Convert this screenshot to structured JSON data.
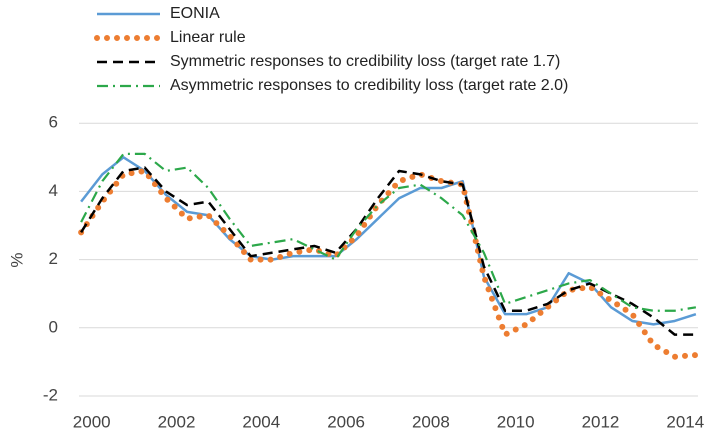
{
  "chart_data": {
    "type": "line",
    "y_label": "%",
    "x": [
      1999.75,
      2000.25,
      2000.75,
      2001.25,
      2001.75,
      2002.25,
      2002.75,
      2003.25,
      2003.75,
      2004.25,
      2004.75,
      2005.25,
      2005.75,
      2006.25,
      2006.75,
      2007.25,
      2007.75,
      2008.25,
      2008.75,
      2009.25,
      2009.75,
      2010.25,
      2010.75,
      2011.25,
      2011.75,
      2012.25,
      2012.75,
      2013.25,
      2013.75,
      2014.25
    ],
    "series": [
      {
        "name": "EONIA",
        "color": "#5b9bd5",
        "style": "solid",
        "values": [
          3.7,
          4.5,
          5.0,
          4.6,
          3.9,
          3.4,
          3.3,
          2.6,
          2.1,
          2.0,
          2.1,
          2.1,
          2.1,
          2.6,
          3.2,
          3.8,
          4.1,
          4.1,
          4.3,
          1.5,
          0.4,
          0.4,
          0.6,
          1.6,
          1.3,
          0.6,
          0.2,
          0.1,
          0.2,
          0.4
        ]
      },
      {
        "name": "Linear rule",
        "color": "#ed7d31",
        "style": "dotted",
        "values": [
          2.8,
          3.7,
          4.5,
          4.6,
          3.8,
          3.2,
          3.3,
          2.7,
          2.0,
          2.0,
          2.2,
          2.3,
          2.1,
          2.7,
          3.6,
          4.3,
          4.5,
          4.3,
          4.2,
          1.5,
          -0.2,
          0.1,
          0.6,
          1.1,
          1.2,
          0.8,
          0.4,
          -0.5,
          -0.85,
          -0.8
        ]
      },
      {
        "name": "Symmetric responses to credibility loss (target rate 1.7)",
        "color": "#000000",
        "style": "dashed",
        "values": [
          2.8,
          3.8,
          4.6,
          4.7,
          4.0,
          3.6,
          3.7,
          2.9,
          2.1,
          2.2,
          2.3,
          2.4,
          2.2,
          2.9,
          3.8,
          4.6,
          4.5,
          4.3,
          4.2,
          1.8,
          0.5,
          0.5,
          0.7,
          1.1,
          1.3,
          1.0,
          0.7,
          0.3,
          -0.2,
          -0.2
        ]
      },
      {
        "name": "Asymmetric responses to credibility loss (target rate 2.0)",
        "color": "#2ca84a",
        "style": "dashdot",
        "values": [
          3.1,
          4.3,
          5.1,
          5.1,
          4.6,
          4.7,
          4.1,
          3.2,
          2.4,
          2.5,
          2.6,
          2.3,
          2.0,
          2.9,
          3.6,
          4.1,
          4.2,
          3.8,
          3.3,
          2.2,
          0.7,
          0.9,
          1.1,
          1.3,
          1.4,
          1.0,
          0.6,
          0.5,
          0.5,
          0.6
        ]
      }
    ],
    "xlim": [
      1999.7,
      2014.3
    ],
    "xticks": [
      2000,
      2002,
      2004,
      2006,
      2008,
      2010,
      2012,
      2014
    ],
    "ylim": [
      -2.5,
      6.3
    ],
    "yticks": [
      -2,
      0,
      2,
      4,
      6
    ],
    "grid": true
  }
}
